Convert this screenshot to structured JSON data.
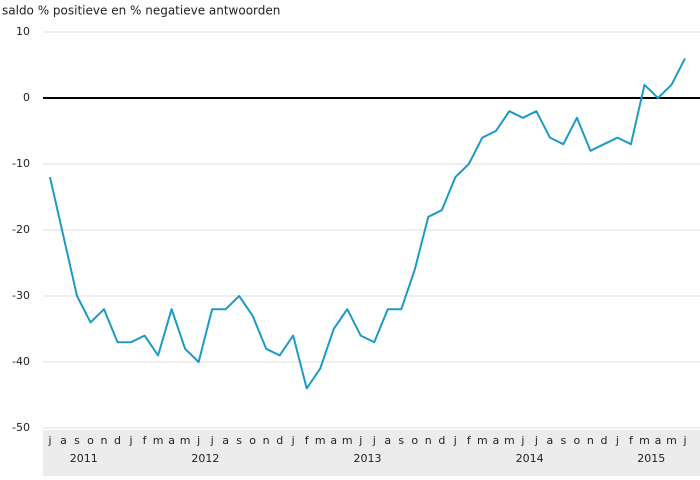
{
  "chart_data": {
    "type": "line",
    "title": "saldo % positieve en % negatieve antwoorden",
    "categories": [
      "j",
      "a",
      "s",
      "o",
      "n",
      "d",
      "j",
      "f",
      "m",
      "a",
      "m",
      "j",
      "j",
      "a",
      "s",
      "o",
      "n",
      "d",
      "j",
      "f",
      "m",
      "a",
      "m",
      "j",
      "j",
      "a",
      "s",
      "o",
      "n",
      "d",
      "j",
      "f",
      "m",
      "a",
      "m",
      "j",
      "j",
      "a",
      "s",
      "o",
      "n",
      "d",
      "j",
      "f",
      "m",
      "a",
      "m",
      "j"
    ],
    "groups": [
      "2011",
      "2012",
      "2013",
      "2014",
      "2015"
    ],
    "series": [
      {
        "color": "#1b9bc6",
        "values": [
          -12,
          -21,
          -30,
          -34,
          -32,
          -37,
          -37,
          -36,
          -39,
          -32,
          -38,
          -40,
          -32,
          -32,
          -30,
          -33,
          -38,
          -39,
          -36,
          -44,
          -41,
          -35,
          -32,
          -36,
          -37,
          -32,
          -32,
          -26,
          -18,
          -17,
          -12,
          -10,
          -6,
          -5,
          -2,
          -3,
          -2,
          -6,
          -7,
          -3,
          -8,
          -7,
          -6,
          -7,
          2,
          0,
          2,
          6
        ]
      }
    ],
    "ylim": [
      -50,
      10
    ],
    "yticks": [
      -50,
      -40,
      -30,
      -20,
      -10,
      0,
      10
    ],
    "grid": true
  }
}
